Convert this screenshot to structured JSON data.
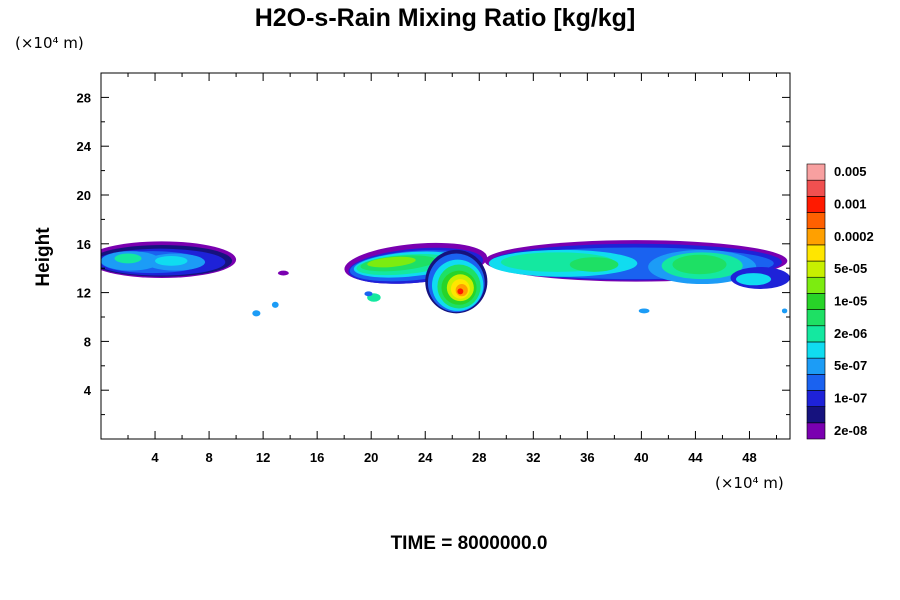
{
  "chart_data": {
    "type": "heatmap",
    "title": "H2O-s-Rain Mixing Ratio [kg/kg]",
    "xlabel": "",
    "ylabel": "Height",
    "x_unit": "(×10⁴ m)",
    "y_unit": "(×10⁴ m)",
    "xlim": [
      0,
      51
    ],
    "ylim": [
      0,
      30
    ],
    "x_ticks": [
      4,
      8,
      12,
      16,
      20,
      24,
      28,
      32,
      36,
      40,
      44,
      48
    ],
    "y_ticks": [
      4,
      8,
      12,
      16,
      20,
      24,
      28
    ],
    "x_tick_labels": [
      "4",
      "8",
      "12",
      "16",
      "20",
      "24",
      "28",
      "32",
      "36",
      "40",
      "44",
      "48"
    ],
    "y_tick_labels": [
      "4",
      "8",
      "12",
      "16",
      "20",
      "24",
      "28"
    ],
    "colorbar": {
      "colors": [
        "#7a00b0",
        "#16127e",
        "#1e22d8",
        "#1a62f0",
        "#1c9cf6",
        "#10dcf0",
        "#14e8a0",
        "#1ee064",
        "#28d428",
        "#7cec10",
        "#c8f000",
        "#ffe600",
        "#ffa000",
        "#ff6000",
        "#ff1a00",
        "#f05050",
        "#f8a0a0"
      ],
      "labels": [
        "2e-08",
        "1e-07",
        "5e-07",
        "2e-06",
        "1e-05",
        "5e-05",
        "0.0002",
        "0.001",
        "0.005"
      ]
    },
    "features": [
      {
        "name": "cloud-band-west",
        "x_range": [
          0,
          10
        ],
        "y_range": [
          13.2,
          16.2
        ],
        "level": "2e-06"
      },
      {
        "name": "cloud-band-central",
        "x_range": [
          18,
          28
        ],
        "y_range": [
          11,
          16
        ],
        "level": "5e-05"
      },
      {
        "name": "convective-core",
        "x_center": 26.5,
        "y_center": 12.2,
        "level": "0.001"
      },
      {
        "name": "cloud-band-east",
        "x_range": [
          28.5,
          51
        ],
        "y_range": [
          11.5,
          16.2
        ],
        "level": "1e-05"
      },
      {
        "name": "isolated-cells",
        "points": [
          [
            11.5,
            10.3
          ],
          [
            12.9,
            11
          ],
          [
            13.5,
            13.6
          ],
          [
            20.2,
            11.6
          ],
          [
            40.2,
            10.5
          ],
          [
            50.6,
            10.5
          ]
        ],
        "level": "1e-07"
      }
    ]
  },
  "footer": {
    "time_label": "TIME = 8000000.0"
  }
}
